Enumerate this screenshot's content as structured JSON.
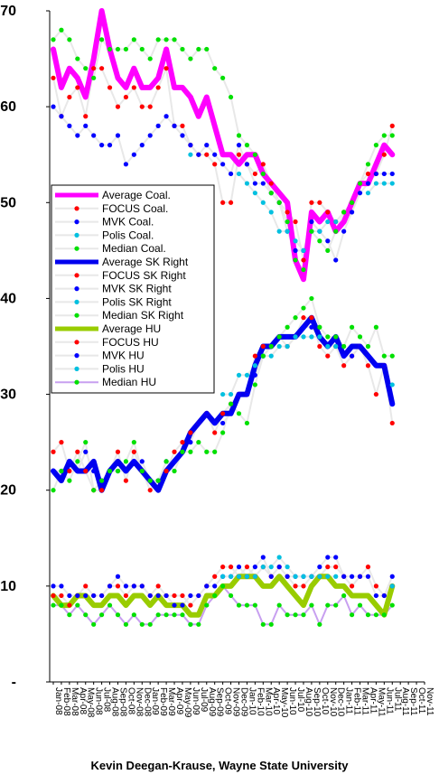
{
  "chart_data": {
    "type": "line",
    "y_ticks": [
      "70",
      "60",
      "50",
      "40",
      "30",
      "20",
      "10",
      "-"
    ],
    "ylim": [
      0,
      70
    ],
    "x_categories": [
      "Jan-08",
      "Feb-08",
      "Mar-08",
      "Apr-08",
      "May-08",
      "Jun-08",
      "Jul-08",
      "Aug-08",
      "Sep-08",
      "Oct-08",
      "Nov-08",
      "Dec-08",
      "Jan-09",
      "Feb-09",
      "Mar-09",
      "Apr-09",
      "May-09",
      "Jun-09",
      "Jul-09",
      "Aug-09",
      "Sep-09",
      "Oct-09",
      "Nov-09",
      "Dec-09",
      "Jan-10",
      "Feb-10",
      "Mar-10",
      "Apr-10",
      "May-10",
      "Jun-10",
      "Jul-10",
      "Aug-10",
      "Sep-10",
      "Oct-10",
      "Nov-10",
      "Dec-10",
      "Jan-11",
      "Feb-11",
      "Mar-11",
      "Apr-11",
      "May-11",
      "Jun-11",
      "Jul-11",
      "Aug-11",
      "Sep-11",
      "Oct-11",
      "Nov-11"
    ],
    "legend_position": "center-left",
    "series": [
      {
        "name": "Average Coal.",
        "color": "#ff00ff",
        "style": "thick-line",
        "values": [
          66,
          62,
          64,
          63,
          61,
          65,
          70,
          66,
          63,
          62,
          64,
          62,
          62,
          63,
          66,
          62,
          62,
          61,
          59,
          61,
          58,
          55,
          55,
          54,
          55,
          55,
          53,
          52,
          51,
          50,
          44,
          42,
          49,
          48,
          49,
          47,
          48,
          50,
          52,
          52,
          54,
          56,
          55,
          null,
          null,
          null,
          null
        ]
      },
      {
        "name": "FOCUS Coal.",
        "color": "#e8e8e8",
        "marker": "#ff0000",
        "style": "thin-line-dots",
        "values": [
          63,
          59,
          61,
          62,
          59,
          64,
          64,
          62,
          60,
          61,
          62,
          60,
          60,
          62,
          64,
          58,
          58,
          56,
          55,
          55,
          54,
          50,
          50,
          55,
          54,
          53,
          54,
          52,
          50,
          49,
          48,
          44,
          50,
          50,
          49,
          48,
          49,
          50,
          52,
          53,
          53,
          55,
          58,
          null,
          null,
          null,
          null
        ]
      },
      {
        "name": "MVK Coal.",
        "color": "#e8e8e8",
        "marker": "#0000ff",
        "style": "thin-line-dots",
        "values": [
          60,
          59,
          58,
          57,
          58,
          57,
          56,
          56,
          57,
          54,
          55,
          56,
          57,
          58,
          59,
          58,
          57,
          56,
          55,
          56,
          55,
          54,
          53,
          56,
          54,
          52,
          52,
          51,
          50,
          47,
          45,
          45,
          48,
          47,
          46,
          44,
          47,
          49,
          51,
          52,
          53,
          53,
          53,
          null,
          null,
          null,
          null
        ]
      },
      {
        "name": "Polis Coal.",
        "color": "#e8e8e8",
        "marker": "#00c0e0",
        "style": "thin-line-dots",
        "values": [
          null,
          null,
          null,
          null,
          null,
          null,
          null,
          null,
          null,
          null,
          null,
          null,
          null,
          null,
          null,
          null,
          null,
          55,
          null,
          null,
          null,
          null,
          null,
          53,
          52,
          51,
          50,
          49,
          47,
          47,
          46,
          45,
          47,
          47,
          48,
          48,
          null,
          null,
          null,
          51,
          52,
          52,
          52,
          null,
          null,
          null,
          null
        ]
      },
      {
        "name": "Median Coal.",
        "color": "#e8e8e8",
        "marker": "#00e000",
        "style": "thin-line-dots",
        "values": [
          67,
          68,
          67,
          65,
          64,
          63,
          67,
          66,
          66,
          66,
          67,
          66,
          65,
          67,
          67,
          67,
          66,
          65,
          66,
          66,
          64,
          63,
          61,
          57,
          56,
          55,
          53,
          51,
          50,
          48,
          44,
          43,
          47,
          46,
          45,
          47,
          49,
          50,
          52,
          54,
          56,
          57,
          57,
          null,
          null,
          null,
          null
        ]
      },
      {
        "name": "Average SK Right",
        "color": "#0000ee",
        "style": "thick-line",
        "values": [
          22,
          21,
          23,
          22,
          22,
          23,
          20,
          22,
          23,
          22,
          23,
          22,
          21,
          20,
          22,
          23,
          24,
          26,
          27,
          28,
          27,
          28,
          28,
          30,
          30,
          33,
          35,
          35,
          36,
          36,
          36,
          37,
          38,
          36,
          35,
          36,
          34,
          35,
          35,
          34,
          33,
          33,
          29,
          null,
          null,
          null,
          null
        ]
      },
      {
        "name": "FOCUS SK Right",
        "color": "#e8e8e8",
        "marker": "#ff0000",
        "style": "thin-line-dots",
        "values": [
          24,
          25,
          22,
          24,
          22,
          20,
          20,
          22,
          24,
          21,
          24,
          22,
          20,
          21,
          22,
          24,
          25,
          26,
          27,
          28,
          26,
          28,
          29,
          30,
          30,
          34,
          35,
          35,
          36,
          35,
          36,
          38,
          38,
          35,
          34,
          35,
          33,
          34,
          35,
          33,
          30,
          33,
          27,
          null,
          null,
          null,
          null
        ]
      },
      {
        "name": "MVK SK Right",
        "color": "#e8e8e8",
        "marker": "#0000ff",
        "style": "thin-line-dots",
        "values": [
          22,
          22,
          23,
          22,
          24,
          22,
          21,
          22,
          22,
          22,
          23,
          23,
          21,
          21,
          23,
          23,
          24,
          25,
          27,
          28,
          27,
          27,
          28,
          30,
          30,
          32,
          34,
          35,
          36,
          36,
          36,
          37,
          37,
          36,
          35,
          36,
          34,
          34,
          35,
          34,
          33,
          33,
          29,
          null,
          null,
          null,
          null
        ]
      },
      {
        "name": "Polis SK Right",
        "color": "#e8e8e8",
        "marker": "#00c0e0",
        "style": "thin-line-dots",
        "values": [
          null,
          null,
          null,
          null,
          null,
          null,
          null,
          null,
          null,
          null,
          null,
          null,
          null,
          null,
          null,
          null,
          null,
          null,
          null,
          null,
          null,
          30,
          30,
          32,
          32,
          33,
          34,
          34,
          35,
          35,
          36,
          36,
          36,
          36,
          35,
          35,
          null,
          null,
          null,
          null,
          null,
          null,
          31,
          null,
          null,
          null,
          null
        ]
      },
      {
        "name": "Median SK Right",
        "color": "#e8e8e8",
        "marker": "#00e000",
        "style": "thin-line-dots",
        "values": [
          20,
          22,
          21,
          23,
          25,
          20,
          21,
          22,
          22,
          23,
          25,
          22,
          21,
          21,
          23,
          22,
          24,
          24,
          25,
          24,
          24,
          26,
          29,
          28,
          27,
          31,
          34,
          35,
          36,
          37,
          38,
          39,
          40,
          37,
          36,
          36,
          35,
          37,
          36,
          35,
          37,
          34,
          34,
          null,
          null,
          null,
          null
        ]
      },
      {
        "name": "Average HU",
        "color": "#99cc00",
        "style": "thick-line",
        "values": [
          9,
          8,
          8,
          9,
          9,
          8,
          8,
          9,
          9,
          8,
          9,
          9,
          8,
          9,
          8,
          8,
          8,
          7,
          7,
          9,
          9,
          10,
          10,
          11,
          11,
          11,
          10,
          10,
          11,
          10,
          9,
          8,
          10,
          11,
          11,
          10,
          10,
          9,
          9,
          9,
          8,
          7,
          10,
          null,
          null,
          null,
          null
        ]
      },
      {
        "name": "FOCUS HU",
        "color": "#e8e8e8",
        "marker": "#ff0000",
        "style": "thin-line-dots",
        "values": [
          9,
          9,
          8,
          9,
          10,
          9,
          9,
          10,
          10,
          9,
          10,
          10,
          9,
          10,
          9,
          9,
          9,
          8,
          9,
          10,
          11,
          12,
          12,
          11,
          12,
          11,
          12,
          11,
          12,
          11,
          10,
          10,
          11,
          11,
          12,
          12,
          11,
          10,
          11,
          12,
          10,
          9,
          10,
          null,
          null,
          null,
          null
        ]
      },
      {
        "name": "MVK HU",
        "color": "#e8e8e8",
        "marker": "#0000ff",
        "style": "thin-line-dots",
        "values": [
          10,
          10,
          9,
          9,
          9,
          9,
          9,
          10,
          11,
          10,
          10,
          10,
          9,
          9,
          9,
          8,
          8,
          9,
          9,
          10,
          10,
          11,
          11,
          12,
          11,
          12,
          13,
          11,
          12,
          11,
          11,
          11,
          11,
          12,
          13,
          13,
          11,
          11,
          11,
          11,
          9,
          9,
          11,
          null,
          null,
          null,
          null
        ]
      },
      {
        "name": "Polis HU",
        "color": "#e8e8e8",
        "marker": "#00c0e0",
        "style": "thin-line-dots",
        "values": [
          null,
          null,
          null,
          null,
          null,
          null,
          null,
          null,
          null,
          null,
          null,
          null,
          null,
          null,
          null,
          null,
          null,
          6,
          null,
          null,
          null,
          11,
          11,
          11,
          11,
          11,
          12,
          12,
          13,
          12,
          11,
          11,
          11,
          11,
          11,
          11,
          null,
          null,
          null,
          null,
          null,
          null,
          10,
          null,
          null,
          null,
          null
        ]
      },
      {
        "name": "Median HU",
        "color": "#c8a0f0",
        "marker": "#00e000",
        "style": "thin-line-dots",
        "values": [
          8,
          8,
          7,
          8,
          7,
          6,
          7,
          8,
          7,
          6,
          7,
          6,
          6,
          7,
          7,
          7,
          7,
          6,
          6,
          8,
          9,
          10,
          9,
          8,
          8,
          8,
          6,
          6,
          8,
          7,
          7,
          7,
          8,
          6,
          8,
          8,
          9,
          7,
          8,
          7,
          7,
          7,
          8,
          null,
          null,
          null,
          null
        ]
      }
    ]
  },
  "footer": {
    "credit": "Kevin Deegan-Krause, Wayne State University"
  }
}
